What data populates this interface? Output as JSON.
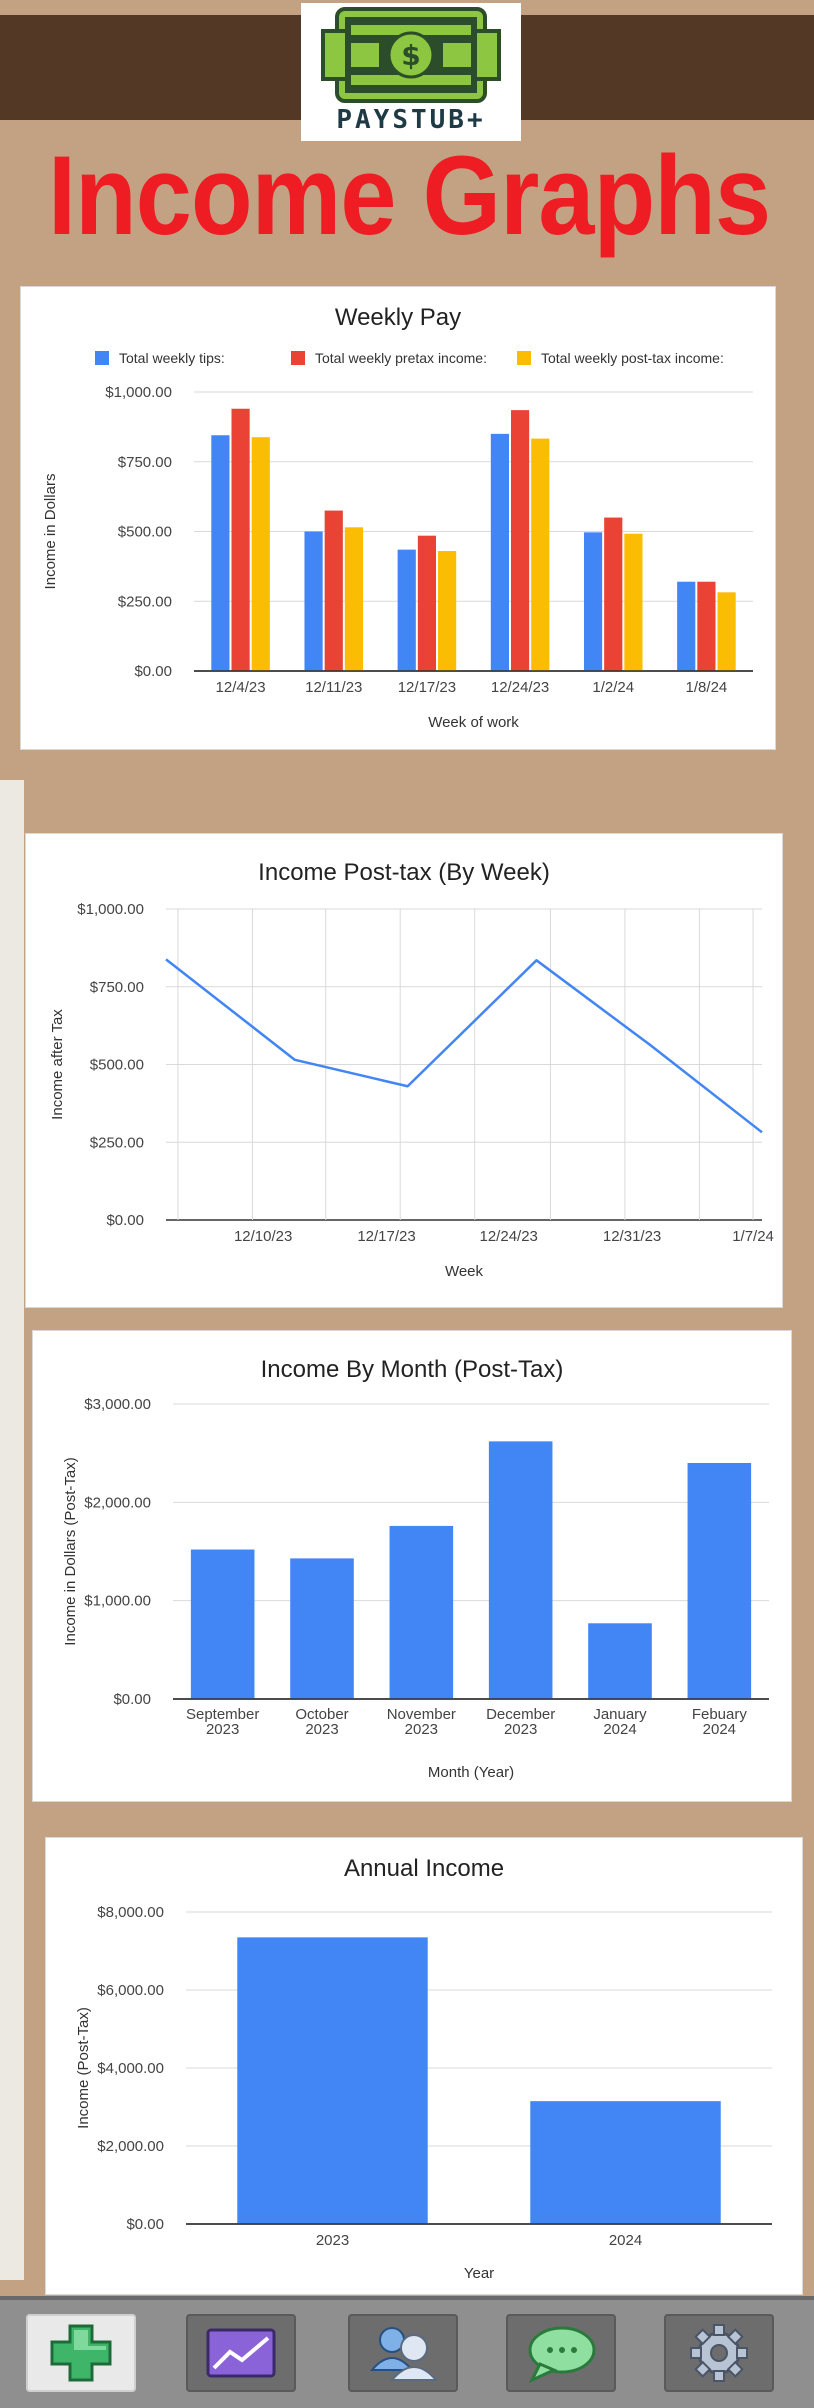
{
  "header": {
    "logo_text": "PAYSTUB+",
    "page_title": "Income Graphs"
  },
  "colors": {
    "blue": "#4285f4",
    "red": "#ea4335",
    "yellow": "#fbbc04",
    "title_red": "#ee1d23"
  },
  "icons": [
    "money-bill-icon",
    "add-icon",
    "graph-icon",
    "users-icon",
    "chat-icon",
    "settings-icon"
  ],
  "chart_data": [
    {
      "type": "bar",
      "title": "Weekly Pay",
      "xlabel": "Week of work",
      "ylabel": "Income in Dollars",
      "categories": [
        "12/4/23",
        "12/11/23",
        "12/17/23",
        "12/24/23",
        "1/2/24",
        "1/8/24"
      ],
      "series": [
        {
          "name": "Total weekly tips:",
          "color": "#4285f4",
          "values": [
            845,
            500,
            435,
            850,
            497,
            320
          ]
        },
        {
          "name": "Total weekly pretax income:",
          "color": "#ea4335",
          "values": [
            940,
            575,
            485,
            935,
            550,
            320
          ]
        },
        {
          "name": "Total weekly post-tax income:",
          "color": "#fbbc04",
          "values": [
            838,
            515,
            430,
            833,
            492,
            282
          ]
        }
      ],
      "ylim": [
        0,
        1000
      ],
      "yticks": [
        "$0.00",
        "$250.00",
        "$500.00",
        "$750.00",
        "$1,000.00"
      ],
      "legend": "top",
      "grid": true
    },
    {
      "type": "line",
      "title": "Income Post-tax (By Week)",
      "xlabel": "Week",
      "ylabel": "Income after Tax",
      "x": [
        "12/3/23",
        "12/11/23",
        "12/18/23",
        "12/26/23",
        "1/2/24",
        "1/9/24"
      ],
      "series": [
        {
          "color": "#4285f4",
          "values": [
            838,
            515,
            430,
            835,
            565,
            282
          ]
        }
      ],
      "xticks": [
        "12/10/23",
        "12/17/23",
        "12/24/23",
        "12/31/23",
        "1/7/24"
      ],
      "ylim": [
        0,
        1000
      ],
      "yticks": [
        "$0.00",
        "$250.00",
        "$500.00",
        "$750.00",
        "$1,000.00"
      ],
      "grid": true
    },
    {
      "type": "bar",
      "title": "Income By Month (Post-Tax)",
      "xlabel": "Month (Year)",
      "ylabel": "Income in Dollars (Post-Tax)",
      "categories": [
        [
          "September",
          "2023"
        ],
        [
          "October",
          "2023"
        ],
        [
          "November",
          "2023"
        ],
        [
          "December",
          "2023"
        ],
        [
          "January",
          "2024"
        ],
        [
          "Febuary",
          "2024"
        ]
      ],
      "series": [
        {
          "color": "#4285f4",
          "values": [
            1520,
            1430,
            1760,
            2620,
            770,
            2400
          ]
        }
      ],
      "ylim": [
        0,
        3000
      ],
      "yticks": [
        "$0.00",
        "$1,000.00",
        "$2,000.00",
        "$3,000.00"
      ],
      "grid": true
    },
    {
      "type": "bar",
      "title": "Annual Income",
      "xlabel": "Year",
      "ylabel": "Income (Post-Tax)",
      "categories": [
        "2023",
        "2024"
      ],
      "series": [
        {
          "color": "#4285f4",
          "values": [
            7350,
            3150
          ]
        }
      ],
      "ylim": [
        0,
        8000
      ],
      "yticks": [
        "$0.00",
        "$2,000.00",
        "$4,000.00",
        "$6,000.00",
        "$8,000.00"
      ],
      "grid": true
    }
  ]
}
